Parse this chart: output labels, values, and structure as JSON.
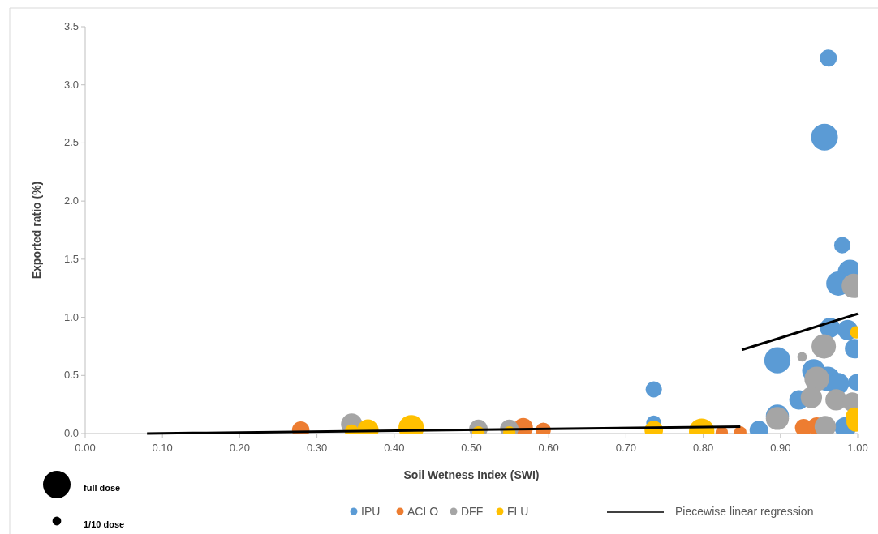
{
  "chart_data": {
    "type": "bubble",
    "xlabel": "Soil Wetness Index (SWI)",
    "ylabel": "Exported ratio (%)",
    "xlim": [
      0,
      1
    ],
    "xticks": [
      {
        "value": 0,
        "label": "0.00"
      },
      {
        "value": 0.1,
        "label": "0.10"
      },
      {
        "value": 0.2,
        "label": "0.20"
      },
      {
        "value": 0.3,
        "label": "0.30"
      },
      {
        "value": 0.4,
        "label": "0.40"
      },
      {
        "value": 0.5,
        "label": "0.50"
      },
      {
        "value": 0.6,
        "label": "0.60"
      },
      {
        "value": 0.7,
        "label": "0.70"
      },
      {
        "value": 0.8,
        "label": "0.80"
      },
      {
        "value": 0.9,
        "label": "0.90"
      },
      {
        "value": 1,
        "label": "1.00"
      }
    ],
    "ylim": [
      0,
      3.5
    ],
    "yticks": [
      {
        "value": 0,
        "label": "0.0"
      },
      {
        "value": 0.5,
        "label": "0.5"
      },
      {
        "value": 1,
        "label": "1.0"
      },
      {
        "value": 1.5,
        "label": "1.5"
      },
      {
        "value": 2,
        "label": "2.0"
      },
      {
        "value": 2.5,
        "label": "2.5"
      },
      {
        "value": 3,
        "label": "3.0"
      },
      {
        "value": 3.5,
        "label": "3.5"
      }
    ],
    "grid": false,
    "legend": "bottom",
    "marker": "circle",
    "size_legend": [
      {
        "value": 1,
        "label": "full dose"
      },
      {
        "value": 0.1,
        "label": "1/10 dose"
      }
    ],
    "series": [
      {
        "name": "IPU",
        "color": "#5b9bd5",
        "x": [
          0.962,
          0.957,
          0.98,
          0.99,
          0.975,
          0.964,
          0.987,
          0.996,
          0.896,
          0.943,
          0.961,
          0.975,
          0.998,
          0.924,
          0.896,
          0.872,
          0.984,
          0.736,
          0.736
        ],
        "values": [
          3.23,
          2.55,
          1.62,
          1.39,
          1.29,
          0.91,
          0.89,
          0.73,
          0.63,
          0.54,
          0.47,
          0.43,
          0.44,
          0.29,
          0.15,
          0.03,
          0.05,
          0.38,
          0.09
        ],
        "sizes": [
          0.38,
          0.94,
          0.35,
          0.78,
          0.78,
          0.54,
          0.54,
          0.5,
          0.9,
          0.7,
          0.8,
          0.6,
          0.35,
          0.5,
          0.7,
          0.45,
          0.6,
          0.35,
          0.3
        ]
      },
      {
        "name": "ACLO",
        "color": "#ed7d31",
        "x": [
          0.93,
          0.947,
          0.824,
          0.848,
          0.279,
          0.567,
          0.593
        ],
        "values": [
          0.05,
          0.06,
          0.01,
          0.01,
          0.03,
          0.05,
          0.03
        ],
        "sizes": [
          0.4,
          0.45,
          0.2,
          0.2,
          0.4,
          0.5,
          0.3
        ]
      },
      {
        "name": "DFF",
        "color": "#a5a5a5",
        "x": [
          0.995,
          0.956,
          0.928,
          0.947,
          0.94,
          0.972,
          0.993,
          0.896,
          0.958,
          0.345,
          0.509,
          0.549
        ],
        "values": [
          1.27,
          0.75,
          0.66,
          0.47,
          0.31,
          0.29,
          0.27,
          0.13,
          0.06,
          0.08,
          0.04,
          0.04
        ],
        "sizes": [
          0.78,
          0.78,
          0.12,
          0.8,
          0.6,
          0.6,
          0.5,
          0.7,
          0.6,
          0.6,
          0.45,
          0.45
        ]
      },
      {
        "name": "FLU",
        "color": "#ffc000",
        "x": [
          0.998,
          0.996,
          0.998,
          0.736,
          0.798,
          0.345,
          0.366,
          0.422,
          0.509,
          0.549
        ],
        "values": [
          0.87,
          0.15,
          0.1,
          0.03,
          0.02,
          0.02,
          0.03,
          0.05,
          0.01,
          0.01
        ],
        "sizes": [
          0.2,
          0.4,
          0.5,
          0.45,
          0.85,
          0.25,
          0.6,
          0.85,
          0.2,
          0.2
        ]
      },
      {
        "name": "Piecewise linear regression",
        "type": "line",
        "color": "#000000",
        "marker": "none",
        "x": [
          0.08,
          0.848,
          0.849,
          0.85,
          1.0
        ],
        "values": [
          0,
          0.06,
          null,
          0.72,
          1.03
        ]
      }
    ]
  }
}
